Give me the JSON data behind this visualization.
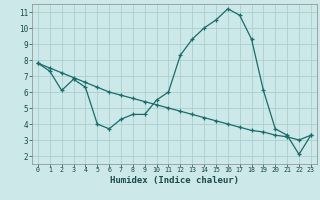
{
  "title": "",
  "xlabel": "Humidex (Indice chaleur)",
  "ylabel": "",
  "bg_color": "#cce8e8",
  "grid_color": "#aad0d0",
  "line_color": "#1a6b6b",
  "series1_x": [
    0,
    1,
    2,
    3,
    4,
    5,
    6,
    7,
    8,
    9,
    10,
    11,
    12,
    13,
    14,
    15,
    16,
    17,
    18,
    19,
    20,
    21,
    22,
    23
  ],
  "series1_y": [
    7.8,
    7.3,
    6.1,
    6.8,
    6.3,
    4.0,
    3.7,
    4.3,
    4.6,
    4.6,
    5.5,
    6.0,
    8.3,
    9.3,
    10.0,
    10.5,
    11.2,
    10.8,
    9.3,
    6.1,
    3.7,
    3.3,
    2.1,
    3.3
  ],
  "series2_x": [
    0,
    1,
    2,
    3,
    4,
    5,
    6,
    7,
    8,
    9,
    10,
    11,
    12,
    13,
    14,
    15,
    16,
    17,
    18,
    19,
    20,
    21,
    22,
    23
  ],
  "series2_y": [
    7.8,
    7.5,
    7.2,
    6.9,
    6.6,
    6.3,
    6.0,
    5.8,
    5.6,
    5.4,
    5.2,
    5.0,
    4.8,
    4.6,
    4.4,
    4.2,
    4.0,
    3.8,
    3.6,
    3.5,
    3.3,
    3.2,
    3.0,
    3.3
  ],
  "xlim": [
    -0.5,
    23.5
  ],
  "ylim": [
    1.5,
    11.5
  ],
  "yticks": [
    2,
    3,
    4,
    5,
    6,
    7,
    8,
    9,
    10,
    11
  ],
  "xticks": [
    0,
    1,
    2,
    3,
    4,
    5,
    6,
    7,
    8,
    9,
    10,
    11,
    12,
    13,
    14,
    15,
    16,
    17,
    18,
    19,
    20,
    21,
    22,
    23
  ]
}
